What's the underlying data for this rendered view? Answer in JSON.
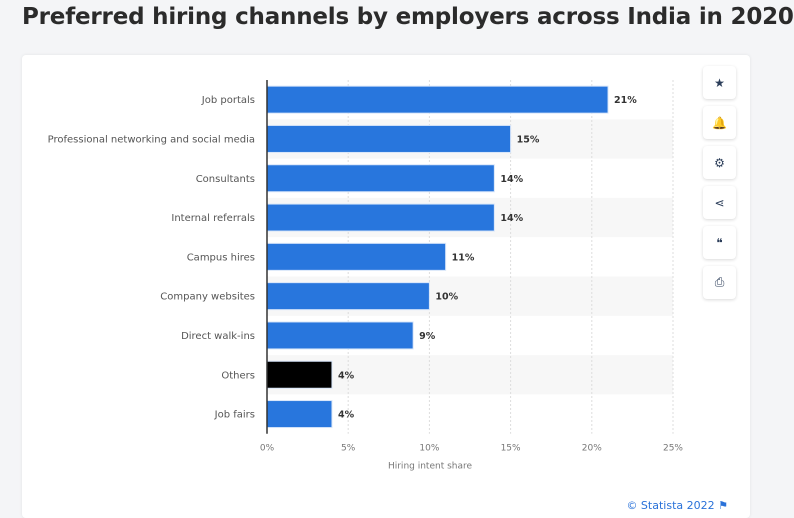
{
  "title": "Preferred hiring channels by employers across India in 2020",
  "toolbar": [
    {
      "name": "star-icon",
      "glyph": "★"
    },
    {
      "name": "bell-icon",
      "glyph": "🔔"
    },
    {
      "name": "gear-icon",
      "glyph": "⚙"
    },
    {
      "name": "share-icon",
      "glyph": "⋖"
    },
    {
      "name": "quote-icon",
      "glyph": "❝"
    },
    {
      "name": "print-icon",
      "glyph": "⎙"
    }
  ],
  "credit": "© Statista 2022",
  "credit_flag": "⚑",
  "chart_data": {
    "type": "bar",
    "orientation": "horizontal",
    "categories": [
      "Job portals",
      "Professional networking and social media",
      "Consultants",
      "Internal referrals",
      "Campus hires",
      "Company websites",
      "Direct walk-ins",
      "Others",
      "Job fairs"
    ],
    "values": [
      21,
      15,
      14,
      14,
      11,
      10,
      9,
      4,
      4
    ],
    "data_labels": [
      "21%",
      "15%",
      "14%",
      "14%",
      "11%",
      "10%",
      "9%",
      "4%",
      "4%"
    ],
    "colors": [
      "#2876dd",
      "#2876dd",
      "#2876dd",
      "#2876dd",
      "#2876dd",
      "#2876dd",
      "#2876dd",
      "#000000",
      "#2876dd"
    ],
    "xlabel": "Hiring intent share",
    "ylabel": "",
    "xlim": [
      0,
      25
    ],
    "xticks": [
      "0%",
      "5%",
      "10%",
      "15%",
      "20%",
      "25%"
    ],
    "grid": true
  }
}
